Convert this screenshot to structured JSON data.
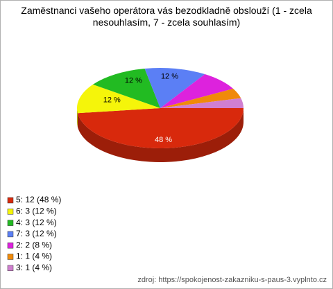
{
  "chart_data": {
    "type": "pie",
    "title": "Zaměstnanci vašeho operátora vás bezodkladně obslouží (1 - zcela nesouhlasím, 7 - zcela souhlasím)",
    "categories": [
      "5: 12 (48 %)",
      "6: 3 (12 %)",
      "4: 3 (12 %)",
      "7: 3 (12 %)",
      "2: 2 (8 %)",
      "1: 1 (4 %)",
      "3: 1 (4 %)"
    ],
    "values": [
      48,
      12,
      12,
      12,
      8,
      4,
      4
    ],
    "value_labels": [
      "48 %",
      "12 %",
      "12 %",
      "12 %",
      null,
      null,
      null
    ],
    "colors": [
      "#d8290c",
      "#f5f50a",
      "#22bb22",
      "#5b7ff5",
      "#dd22dd",
      "#f08a0a",
      "#d07fd0"
    ],
    "legend": "bottom-left",
    "source": "zdroj: https://spokojenost-zakazniku-s-paus-3.vyplnto.cz"
  }
}
